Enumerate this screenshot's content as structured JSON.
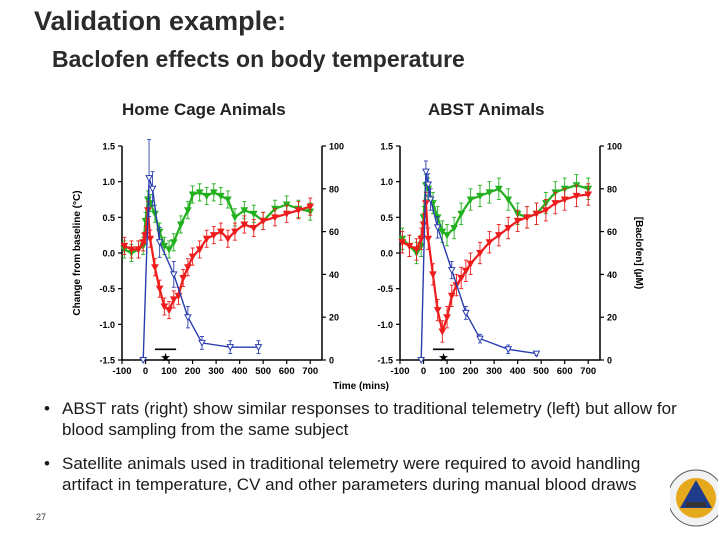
{
  "slide": {
    "title": "Validation example:",
    "subtitle": "Baclofen effects on body temperature",
    "panel_left_label": "Home Cage Animals",
    "panel_right_label": "ABST Animals",
    "bullets": [
      "ABST rats (right) show similar responses to traditional telemetry (left) but allow for blood sampling from the same subject",
      "Satellite animals used in traditional telemetry were required to avoid handling artifact in temperature, CV and other parameters during manual blood draws"
    ],
    "bullet_char": "•",
    "slide_number": "27"
  },
  "colors": {
    "green": "#22b01e",
    "red": "#ee1c1c",
    "blue": "#2a3db0",
    "axis": "#000000"
  },
  "chart_data": [
    {
      "type": "line",
      "panel": "Home Cage Animals",
      "xlabel": "Time (mins)",
      "ylabel": "Change from baseline (°C)",
      "y2label": "[Baclofen] (µM)",
      "xlim": [
        -100,
        750
      ],
      "ylim": [
        -1.5,
        1.5
      ],
      "y2lim": [
        0,
        100
      ],
      "x_ticks": [
        -100,
        0,
        100,
        200,
        300,
        400,
        500,
        600,
        700
      ],
      "y_ticks": [
        -1.5,
        -1.0,
        -0.5,
        0.0,
        0.5,
        1.0,
        1.5
      ],
      "y_tick_labels": [
        "-1.5",
        "-1.0",
        "-0.5",
        "0.0",
        "0.5",
        "1.0",
        "1.5"
      ],
      "y2_ticks": [
        0,
        20,
        40,
        60,
        80,
        100
      ],
      "star_marker": {
        "x_range": [
          40,
          130
        ],
        "symbol": "★"
      },
      "series": [
        {
          "color_key": "green",
          "axis": "left",
          "marker": "triangle-down",
          "x": [
            -90,
            -60,
            -30,
            -10,
            0,
            10,
            20,
            40,
            60,
            80,
            100,
            120,
            150,
            180,
            200,
            230,
            260,
            290,
            320,
            350,
            380,
            420,
            460,
            500,
            550,
            600,
            650,
            700
          ],
          "y": [
            0.05,
            0.0,
            0.05,
            0.1,
            0.45,
            0.75,
            0.7,
            0.55,
            0.3,
            0.1,
            0.05,
            0.15,
            0.4,
            0.6,
            0.82,
            0.85,
            0.8,
            0.85,
            0.8,
            0.75,
            0.5,
            0.6,
            0.55,
            0.45,
            0.62,
            0.68,
            0.62,
            0.58
          ],
          "err": 0.12
        },
        {
          "color_key": "red",
          "axis": "left",
          "marker": "triangle-down",
          "x": [
            -90,
            -60,
            -30,
            -10,
            0,
            10,
            20,
            40,
            60,
            80,
            100,
            120,
            140,
            160,
            180,
            200,
            230,
            260,
            290,
            320,
            350,
            380,
            420,
            460,
            500,
            550,
            600,
            650,
            700
          ],
          "y": [
            0.1,
            0.05,
            0.05,
            0.15,
            0.25,
            0.6,
            0.2,
            -0.2,
            -0.5,
            -0.75,
            -0.8,
            -0.65,
            -0.6,
            -0.35,
            -0.2,
            -0.05,
            0.05,
            0.2,
            0.25,
            0.3,
            0.2,
            0.3,
            0.4,
            0.35,
            0.45,
            0.5,
            0.55,
            0.6,
            0.65
          ],
          "err": 0.12
        },
        {
          "color_key": "blue",
          "axis": "right",
          "marker": "triangle-down-open",
          "x": [
            -10,
            15,
            30,
            60,
            120,
            180,
            240,
            360,
            480
          ],
          "y": [
            0,
            85,
            80,
            55,
            40,
            20,
            8,
            6,
            6
          ],
          "err": [
            0,
            18,
            8,
            7,
            6,
            5,
            3,
            3,
            3
          ]
        }
      ]
    },
    {
      "type": "line",
      "panel": "ABST Animals",
      "xlabel": "Time (mins)",
      "ylabel": "Change from baseline (°C)",
      "y2label": "[Baclofen] (µM)",
      "xlim": [
        -100,
        750
      ],
      "ylim": [
        -1.5,
        1.5
      ],
      "y2lim": [
        0,
        100
      ],
      "x_ticks": [
        -100,
        0,
        100,
        200,
        300,
        400,
        500,
        600,
        700
      ],
      "y_ticks": [
        -1.5,
        -1.0,
        -0.5,
        0.0,
        0.5,
        1.0,
        1.5
      ],
      "y_tick_labels": [
        "-1.5",
        "-1.0",
        "-0.5",
        "0.0",
        "0.5",
        "1.0",
        "1.5"
      ],
      "y2_ticks": [
        0,
        20,
        40,
        60,
        80,
        100
      ],
      "star_marker": {
        "x_range": [
          40,
          130
        ],
        "symbol": "★"
      },
      "series": [
        {
          "color_key": "green",
          "axis": "left",
          "marker": "triangle-down",
          "x": [
            -90,
            -60,
            -30,
            -10,
            0,
            10,
            20,
            40,
            60,
            80,
            100,
            130,
            160,
            200,
            240,
            280,
            320,
            360,
            400,
            440,
            480,
            520,
            560,
            600,
            650,
            700
          ],
          "y": [
            0.2,
            0.1,
            0.0,
            0.1,
            0.5,
            0.95,
            0.9,
            0.7,
            0.5,
            0.3,
            0.25,
            0.35,
            0.55,
            0.75,
            0.8,
            0.85,
            0.9,
            0.75,
            0.55,
            0.5,
            0.55,
            0.7,
            0.85,
            0.9,
            0.95,
            0.9
          ],
          "err": 0.15
        },
        {
          "color_key": "red",
          "axis": "left",
          "marker": "triangle-down",
          "x": [
            -90,
            -60,
            -30,
            -10,
            0,
            10,
            20,
            40,
            60,
            80,
            100,
            120,
            140,
            160,
            180,
            200,
            240,
            280,
            320,
            360,
            400,
            440,
            480,
            520,
            560,
            600,
            650,
            700
          ],
          "y": [
            0.15,
            0.1,
            0.05,
            0.2,
            0.4,
            0.7,
            0.2,
            -0.3,
            -0.8,
            -1.1,
            -0.9,
            -0.6,
            -0.45,
            -0.35,
            -0.25,
            -0.15,
            0.0,
            0.15,
            0.25,
            0.35,
            0.45,
            0.5,
            0.55,
            0.6,
            0.7,
            0.75,
            0.8,
            0.82
          ],
          "err": 0.15
        },
        {
          "color_key": "blue",
          "axis": "right",
          "marker": "triangle-down-open",
          "x": [
            -10,
            10,
            20,
            30,
            60,
            120,
            180,
            240,
            360,
            480
          ],
          "y": [
            0,
            88,
            82,
            75,
            62,
            42,
            22,
            10,
            5,
            3
          ],
          "err": [
            0,
            5,
            5,
            5,
            5,
            4,
            3,
            2,
            2,
            1
          ]
        }
      ]
    }
  ]
}
